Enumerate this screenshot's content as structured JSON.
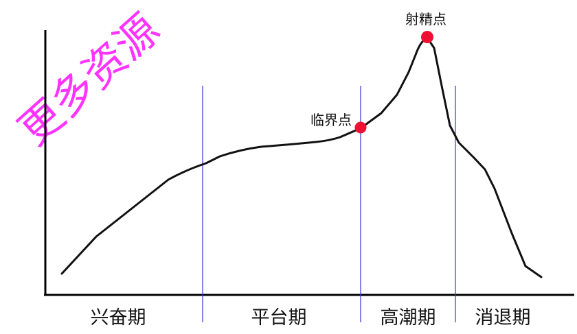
{
  "watermark": {
    "text": "更多资源",
    "color": "#ff33ff"
  },
  "colors": {
    "curve": "#111111",
    "axis": "#000000",
    "phase_divider": "#3333dd",
    "marker": "#ee1133"
  },
  "phases": [
    {
      "label": "兴奋期"
    },
    {
      "label": "平台期"
    },
    {
      "label": "高潮期"
    },
    {
      "label": "消退期"
    }
  ],
  "points": [
    {
      "label": "临界点",
      "color": "#ee1133"
    },
    {
      "label": "射精点",
      "color": "#ee1133"
    }
  ]
}
